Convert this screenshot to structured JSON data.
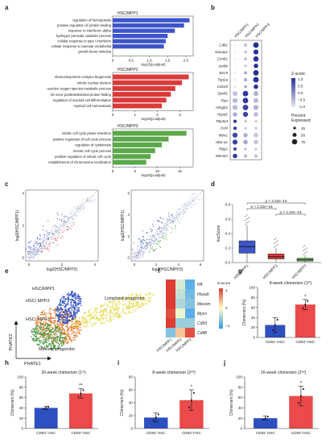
{
  "panel_labels": [
    "a",
    "b",
    "c",
    "d",
    "e",
    "f",
    "g",
    "h",
    "i",
    "j"
  ],
  "colors": {
    "hsc_mpp1": "#3e55c8",
    "hsc_mpp2": "#d93a3a",
    "hsc_mpp3": "#5aa84a",
    "cd93_neg": "#2e4fbf",
    "cd93_pos": "#ea4a4a",
    "scatter_grey": "#9aa3c8",
    "umap_yellow": "#e6dc5a",
    "umap_orange": "#e07a2a",
    "umap_green": "#4f9a48",
    "umap_blue": "#3050c0"
  },
  "chart_data": [
    {
      "id": "a1",
      "type": "bar",
      "title": "HSC/MPP1",
      "categories": [
        "regulation of hemopoiesis",
        "positive regulation of protein binding",
        "response to interferon−alpha",
        "hydrogen peroxide catabolic process",
        "cellular response to type I interferon",
        "cellular response to vascular endothelial",
        "growth factor stimulus"
      ],
      "values": [
        2.1,
        1.95,
        1.7,
        1.5,
        1.45,
        1.4,
        0
      ],
      "xlabel": "-log10(p.adjust)",
      "xticks": [
        "0",
        "0.5",
        "1.0",
        "1.5",
        "2.0"
      ],
      "xlim": [
        0,
        2.2
      ]
    },
    {
      "id": "a2",
      "type": "bar",
      "title": "HSC/MPP2",
      "categories": [
        "ribonucleoprotein complex biogenesis",
        "mitotic nuclear division",
        "reactive oxygen species metabolic process",
        "'de novo' posttranslational protein folding",
        "regulation of myeloid cell differentiation",
        "myeloid cell homeostasis"
      ],
      "values": [
        3.4,
        3.1,
        2.8,
        2.6,
        2.4,
        2.2
      ],
      "xlabel": "-log10(p.adjust)",
      "xticks": [
        "0",
        "1",
        "2",
        "3"
      ],
      "xlim": [
        0,
        3.6
      ]
    },
    {
      "id": "a3",
      "type": "bar",
      "title": "HSC/MPP3",
      "categories": [
        "mitotic cell cycle phase transition",
        "positive regulation of cell cycle process",
        "regulation of cytokinesis",
        "meiotic cell cycle process",
        "positive regulation of mitotic cell cycle",
        "establishment of chromosome localization"
      ],
      "values": [
        16.5,
        12.5,
        11.0,
        9.5,
        8.5,
        7.5
      ],
      "xlabel": "-log10(p.adjust)",
      "xticks": [
        "0",
        "5",
        "10",
        "15"
      ],
      "xlim": [
        0,
        18
      ]
    },
    {
      "id": "b",
      "type": "dot",
      "columns": [
        "HSC/MPP1",
        "HSC/MPP2",
        "HSC/MPP3"
      ],
      "genes": [
        "Cdk1",
        "Nusap1",
        "Ccnb1",
        "Aurkb",
        "Birc5",
        "Top2a",
        "Cdc20",
        "Dynll1",
        "Ran",
        "Hmgb1",
        "Hspd1",
        "Ptp4a3",
        "Ccl4",
        "Ifitm1",
        "Hba-a1",
        "Rbp1",
        "Mecom"
      ],
      "zscore": [
        [
          -1,
          -0.6,
          1
        ],
        [
          -1,
          -0.6,
          1
        ],
        [
          -1,
          -0.5,
          1
        ],
        [
          -1,
          -0.5,
          1
        ],
        [
          -1,
          -0.3,
          1
        ],
        [
          -1,
          -0.3,
          1
        ],
        [
          -0.8,
          -0.2,
          1
        ],
        [
          -0.6,
          0.9,
          -0.4
        ],
        [
          -0.5,
          0.9,
          -0.5
        ],
        [
          -0.5,
          0.8,
          -0.4
        ],
        [
          -0.4,
          0.8,
          -0.5
        ],
        [
          0.9,
          -0.4,
          -0.6
        ],
        [
          0.9,
          -0.5,
          -0.5
        ],
        [
          0.8,
          -0.4,
          -0.6
        ],
        [
          0.8,
          -0.3,
          -0.6
        ],
        [
          0.7,
          -0.4,
          -0.6
        ],
        [
          0.9,
          -0.5,
          -0.6
        ]
      ],
      "pct": [
        [
          10,
          40,
          80
        ],
        [
          8,
          30,
          70
        ],
        [
          10,
          30,
          75
        ],
        [
          5,
          20,
          60
        ],
        [
          10,
          35,
          80
        ],
        [
          12,
          40,
          80
        ],
        [
          10,
          25,
          60
        ],
        [
          70,
          80,
          70
        ],
        [
          70,
          80,
          70
        ],
        [
          70,
          80,
          70
        ],
        [
          60,
          70,
          60
        ],
        [
          40,
          20,
          20
        ],
        [
          40,
          20,
          20
        ],
        [
          70,
          60,
          60
        ],
        [
          70,
          60,
          60
        ],
        [
          40,
          20,
          20
        ],
        [
          60,
          40,
          40
        ]
      ],
      "legend_title": "Z-score",
      "legend_ticks": [
        "1.0",
        "0.5",
        "0.0",
        "−0.5",
        "−1.0"
      ],
      "size_title": "Percent Expressed",
      "size_values": [
        "25",
        "50",
        "75"
      ]
    },
    {
      "id": "c1",
      "type": "scatter",
      "xlabel": "log2(HSC/MPP2)",
      "ylabel": "log2(HSC/MPP1)",
      "xticks": [
        "0",
        "2",
        "4"
      ],
      "yticks": [
        "0",
        "2",
        "4"
      ]
    },
    {
      "id": "c2",
      "type": "scatter",
      "xlabel": "log2(HSC/MPP3)",
      "ylabel": "log2(HSC/MPP1)",
      "xticks": [
        "0",
        "2",
        "4",
        "6"
      ],
      "yticks": [
        "0",
        "2",
        "4",
        "6"
      ]
    },
    {
      "id": "d",
      "type": "box",
      "categories": [
        "HSC/MPP1",
        "HSC/MPP2",
        "HSC/MPP3"
      ],
      "ylabel": "hscScore",
      "yticks": [
        "0.0",
        "0.2",
        "0.4",
        "0.6",
        "0.8"
      ],
      "ylim": [
        0,
        0.8
      ],
      "boxes": [
        {
          "q1": 0.13,
          "median": 0.22,
          "q3": 0.3,
          "lo": 0.0,
          "hi": 0.52
        },
        {
          "q1": 0.05,
          "median": 0.08,
          "q3": 0.12,
          "lo": 0.0,
          "hi": 0.2
        },
        {
          "q1": 0.02,
          "median": 0.04,
          "q3": 0.06,
          "lo": 0.0,
          "hi": 0.1
        }
      ],
      "pvalues": [
        "p < 2.22e−16",
        "p < 2.22e−16",
        "p < 2.22e−16"
      ]
    },
    {
      "id": "e",
      "type": "embedding",
      "xlabel": "PHATE1",
      "ylabel": "PHATE2",
      "labels": [
        "HSC/MPP1",
        "HSC/ MPP2",
        "HSC/ MPP3",
        "Lymphoid progenitor",
        "Myeloid progenitor"
      ]
    },
    {
      "id": "f",
      "type": "heatmap",
      "rows": [
        "Hlf",
        "Hoxa9",
        "Mecom",
        "Mycn",
        "Cd93",
        "Cd48"
      ],
      "columns": [
        "HSC/MPP1",
        "HSC/MPP2",
        "HSC/MPP3"
      ],
      "values": [
        [
          1,
          -0.2,
          -0.8
        ],
        [
          1,
          -0.3,
          -0.7
        ],
        [
          1,
          -0.4,
          -0.6
        ],
        [
          0.9,
          -0.1,
          -0.8
        ],
        [
          1,
          -0.5,
          -0.5
        ],
        [
          -0.6,
          0.3,
          0.9
        ]
      ],
      "legend_title": "Z-score",
      "legend_ticks": [
        "1",
        "0",
        "−1"
      ]
    },
    {
      "id": "g",
      "type": "bar",
      "title": "8-week chimerism (1ˢᵗ)",
      "categories": [
        "CD93⁻HSC",
        "CD93⁺HSC"
      ],
      "values": [
        25,
        66
      ],
      "err": [
        15,
        10
      ],
      "ylabel": "Chimerism (%)",
      "yticks": [
        "0",
        "20",
        "40",
        "60",
        "80",
        "100"
      ],
      "ylim": [
        0,
        100
      ],
      "sig": "*"
    },
    {
      "id": "h",
      "type": "bar",
      "title": "20-week chimerism (1ˢᵗ)",
      "categories": [
        "CD93⁻HSC",
        "CD93⁺HSC"
      ],
      "values": [
        40,
        68
      ],
      "err": [
        3,
        9
      ],
      "ylabel": "Chimerism (%)",
      "yticks": [
        "0",
        "20",
        "40",
        "60",
        "80",
        "100"
      ],
      "ylim": [
        0,
        100
      ],
      "sig": "**"
    },
    {
      "id": "i",
      "type": "bar",
      "title": "8-week chimerism (2ⁿᵈ)",
      "categories": [
        "CD93⁻HSC",
        "CD93⁺HSC"
      ],
      "values": [
        17,
        44
      ],
      "err": [
        7,
        16
      ],
      "ylabel": "Chimerism (%)",
      "yticks": [
        "0",
        "20",
        "40",
        "60",
        "80"
      ],
      "ylim": [
        0,
        80
      ],
      "sig": "*"
    },
    {
      "id": "j",
      "type": "bar",
      "title": "16-week chimerism (2ⁿᵈ)",
      "categories": [
        "CD93⁻HSC",
        "CD93⁺HSC"
      ],
      "values": [
        20,
        63
      ],
      "err": [
        4,
        19
      ],
      "ylabel": "Chimerism (%)",
      "yticks": [
        "0",
        "20",
        "40",
        "60",
        "80",
        "100"
      ],
      "ylim": [
        0,
        100
      ],
      "sig": "*"
    }
  ]
}
